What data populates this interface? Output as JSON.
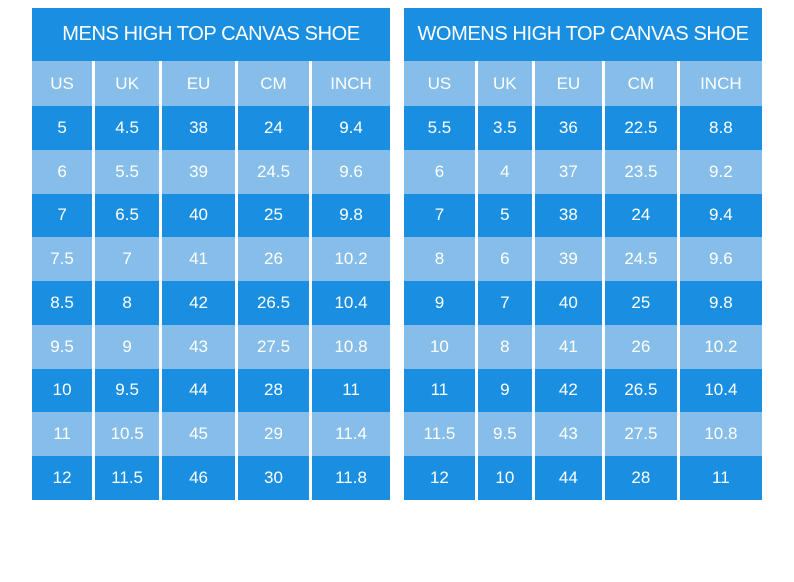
{
  "colors": {
    "primary_blue": "#1a8fe1",
    "light_blue": "#86bde9",
    "text": "#ffffff",
    "background": "#ffffff"
  },
  "chart_data": [
    {
      "type": "table",
      "title": "MENS HIGH TOP CANVAS SHOE",
      "columns": [
        "US",
        "UK",
        "EU",
        "CM",
        "INCH"
      ],
      "rows": [
        [
          "5",
          "4.5",
          "38",
          "24",
          "9.4"
        ],
        [
          "6",
          "5.5",
          "39",
          "24.5",
          "9.6"
        ],
        [
          "7",
          "6.5",
          "40",
          "25",
          "9.8"
        ],
        [
          "7.5",
          "7",
          "41",
          "26",
          "10.2"
        ],
        [
          "8.5",
          "8",
          "42",
          "26.5",
          "10.4"
        ],
        [
          "9.5",
          "9",
          "43",
          "27.5",
          "10.8"
        ],
        [
          "10",
          "9.5",
          "44",
          "28",
          "11"
        ],
        [
          "11",
          "10.5",
          "45",
          "29",
          "11.4"
        ],
        [
          "12",
          "11.5",
          "46",
          "30",
          "11.8"
        ]
      ]
    },
    {
      "type": "table",
      "title": "WOMENS HIGH TOP CANVAS SHOE",
      "columns": [
        "US",
        "UK",
        "EU",
        "CM",
        "INCH"
      ],
      "rows": [
        [
          "5.5",
          "3.5",
          "36",
          "22.5",
          "8.8"
        ],
        [
          "6",
          "4",
          "37",
          "23.5",
          "9.2"
        ],
        [
          "7",
          "5",
          "38",
          "24",
          "9.4"
        ],
        [
          "8",
          "6",
          "39",
          "24.5",
          "9.6"
        ],
        [
          "9",
          "7",
          "40",
          "25",
          "9.8"
        ],
        [
          "10",
          "8",
          "41",
          "26",
          "10.2"
        ],
        [
          "11",
          "9",
          "42",
          "26.5",
          "10.4"
        ],
        [
          "11.5",
          "9.5",
          "43",
          "27.5",
          "10.8"
        ],
        [
          "12",
          "10",
          "44",
          "28",
          "11"
        ]
      ]
    }
  ]
}
